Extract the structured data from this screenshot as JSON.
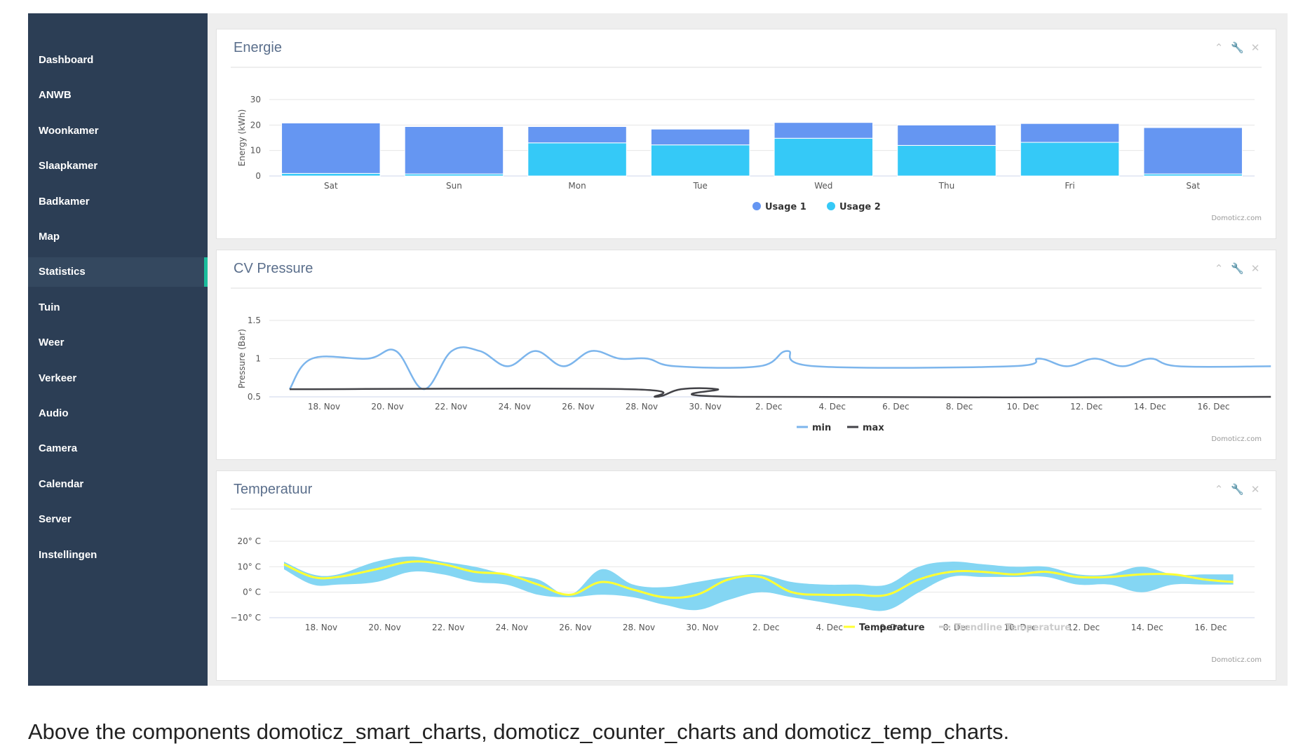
{
  "sidebar": {
    "items": [
      {
        "label": "Dashboard",
        "active": false
      },
      {
        "label": "ANWB",
        "active": false
      },
      {
        "label": "Woonkamer",
        "active": false
      },
      {
        "label": "Slaapkamer",
        "active": false
      },
      {
        "label": "Badkamer",
        "active": false
      },
      {
        "label": "Map",
        "active": false
      },
      {
        "label": "Statistics",
        "active": true
      },
      {
        "label": "Tuin",
        "active": false
      },
      {
        "label": "Weer",
        "active": false
      },
      {
        "label": "Verkeer",
        "active": false
      },
      {
        "label": "Audio",
        "active": false
      },
      {
        "label": "Camera",
        "active": false
      },
      {
        "label": "Calendar",
        "active": false
      },
      {
        "label": "Server",
        "active": false
      },
      {
        "label": "Instellingen",
        "active": false
      }
    ]
  },
  "panels": [
    {
      "title": "Energie",
      "icons": [
        "chevron-up-icon",
        "wrench-icon",
        "close-icon"
      ]
    },
    {
      "title": "CV Pressure",
      "icons": [
        "chevron-up-icon",
        "wrench-icon",
        "close-icon"
      ]
    },
    {
      "title": "Temperatuur",
      "icons": [
        "chevron-up-icon",
        "wrench-icon",
        "close-icon"
      ]
    }
  ],
  "caption": "Above the components domoticz_smart_charts, domoticz_counter_charts and domoticz_temp_charts.",
  "chart_data": [
    {
      "type": "bar",
      "stacked": true,
      "title": "Energie",
      "ylabel": "Energy (kWh)",
      "ylim": [
        0,
        30
      ],
      "yticks": [
        "0",
        "10",
        "20",
        "30"
      ],
      "categories": [
        "Sat",
        "Sun",
        "Mon",
        "Tue",
        "Wed",
        "Thu",
        "Fri",
        "Sat"
      ],
      "series": [
        {
          "name": "Usage 1",
          "color": "#6596f2",
          "values": [
            19.8,
            18.6,
            6.4,
            6.2,
            6.2,
            8.0,
            7.4,
            18.2
          ]
        },
        {
          "name": "Usage 2",
          "color": "#35c9f7",
          "values": [
            1.0,
            0.8,
            13.0,
            12.2,
            14.8,
            12.0,
            13.2,
            0.8
          ]
        }
      ],
      "legend": "bottom-center",
      "credits": "Domoticz.com"
    },
    {
      "type": "line",
      "title": "CV Pressure",
      "ylabel": "Pressure (Bar)",
      "ylim": [
        0.5,
        1.5
      ],
      "yticks": [
        "0.5",
        "1",
        "1.5"
      ],
      "x_start": "17. Nov",
      "x_end": "17. Dec",
      "xticks": [
        "18. Nov",
        "20. Nov",
        "22. Nov",
        "24. Nov",
        "26. Nov",
        "28. Nov",
        "30. Nov",
        "2. Dec",
        "4. Dec",
        "6. Dec",
        "8. Dec",
        "10. Dec",
        "12. Dec",
        "14. Dec",
        "16. Dec"
      ],
      "series": [
        {
          "name": "min",
          "color": "#7cb5ec",
          "points": [
            [
              0.2,
              0.6
            ],
            [
              1.0,
              1.0
            ],
            [
              3.0,
              1.0
            ],
            [
              4.0,
              1.1
            ],
            [
              5.0,
              0.6
            ],
            [
              6.0,
              1.1
            ],
            [
              7.0,
              1.1
            ],
            [
              8.0,
              0.9
            ],
            [
              9.0,
              1.1
            ],
            [
              10.0,
              0.9
            ],
            [
              11.0,
              1.1
            ],
            [
              12.0,
              1.0
            ],
            [
              13.0,
              1.0
            ],
            [
              14.0,
              0.9
            ],
            [
              17.0,
              0.9
            ],
            [
              18.0,
              1.1
            ],
            [
              19.0,
              0.9
            ],
            [
              26.0,
              0.9
            ],
            [
              27.0,
              1.0
            ],
            [
              28.0,
              0.9
            ],
            [
              29.0,
              1.0
            ],
            [
              30.0,
              0.9
            ],
            [
              31.0,
              1.0
            ],
            [
              32.0,
              0.9
            ],
            [
              35.3,
              0.9
            ]
          ]
        },
        {
          "name": "max",
          "color": "#434348",
          "points": [
            [
              0.2,
              0.6
            ],
            [
              12.3,
              0.6
            ],
            [
              13.3,
              0.5
            ],
            [
              14.2,
              0.6
            ],
            [
              15.5,
              0.6
            ],
            [
              16.3,
              0.5
            ],
            [
              35.3,
              0.5
            ]
          ]
        }
      ],
      "legend": "bottom-center",
      "credits": "Domoticz.com"
    },
    {
      "type": "area",
      "title": "Temperatuur",
      "ylim": [
        -10,
        20
      ],
      "yticks": [
        "−10° C",
        "0° C",
        "10° C",
        "20° C"
      ],
      "x_start": "17. Nov",
      "x_end": "17. Dec",
      "xticks": [
        "18. Nov",
        "20. Nov",
        "22. Nov",
        "24. Nov",
        "26. Nov",
        "28. Nov",
        "30. Nov",
        "2. Dec",
        "4. Dec",
        "6. Dec",
        "8. Dec",
        "10. Dec",
        "12. Dec",
        "14. Dec",
        "16. Dec"
      ],
      "series": [
        {
          "name": "Temperature",
          "color": "#ffff33",
          "x": [
            0,
            0.9,
            1.7,
            2.9,
            4.0,
            5.0,
            6.0,
            7.0,
            8.0,
            9.0,
            10.0,
            11.0,
            12.0,
            13.0,
            14.0,
            15.0,
            16.0,
            17.0,
            18.0,
            19.0,
            20.0,
            21.0,
            22.0,
            23.0,
            24.0,
            25.0,
            26.0,
            27.0,
            28.0,
            29.0,
            29.9
          ],
          "values": [
            11,
            6,
            6,
            9,
            12,
            11,
            8,
            7,
            3,
            -1,
            4,
            1,
            -2,
            -1,
            5,
            6,
            0,
            -1,
            -1,
            -1,
            5,
            8,
            8,
            7,
            8,
            6,
            6,
            7,
            7,
            5,
            4
          ]
        },
        {
          "name": "Range",
          "color": "#7dd4f2",
          "low": [
            9,
            3,
            3,
            4,
            8,
            7,
            4,
            3,
            -1,
            -2,
            -1,
            -2,
            -5,
            -7,
            -3,
            0,
            -2,
            -4,
            -6,
            -7,
            0,
            6,
            6,
            6,
            6,
            3,
            3,
            0,
            3,
            3,
            3
          ],
          "high": [
            12,
            7,
            7,
            12,
            14,
            12,
            10,
            7,
            5,
            -1,
            9,
            3,
            2,
            4,
            6,
            7,
            4,
            3,
            3,
            3,
            10,
            12,
            11,
            10,
            10,
            7,
            7,
            10,
            7,
            7,
            7
          ]
        },
        {
          "name": "Trendline Temperature",
          "color": "#cccccc",
          "hidden": true
        }
      ],
      "legend": "bottom-center",
      "credits": "Domoticz.com"
    }
  ]
}
